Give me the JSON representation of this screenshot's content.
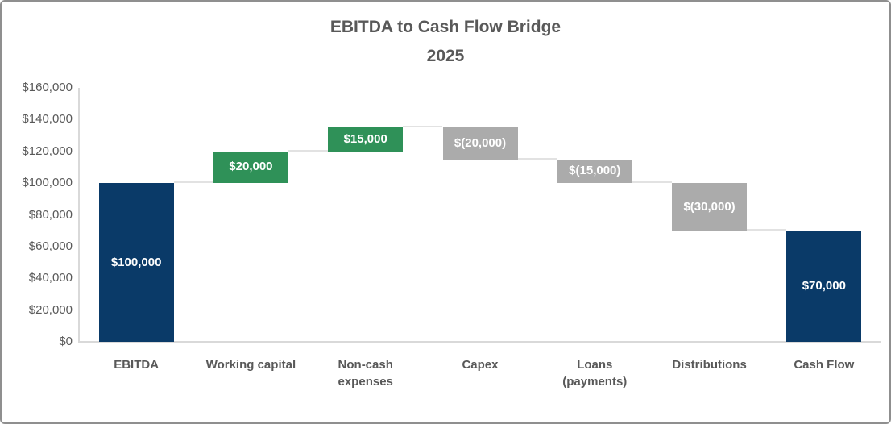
{
  "title": {
    "line1": "EBITDA to Cash Flow Bridge",
    "line2": "2025"
  },
  "chart_data": {
    "type": "bar",
    "subtype": "waterfall",
    "title": "EBITDA to Cash Flow Bridge",
    "subtitle": "2025",
    "xlabel": "",
    "ylabel": "",
    "ylim": [
      0,
      160000
    ],
    "grid": false,
    "legend": "none",
    "categories": [
      {
        "lines": [
          "EBITDA"
        ]
      },
      {
        "lines": [
          "Working capital"
        ]
      },
      {
        "lines": [
          "Non-cash",
          "expenses"
        ]
      },
      {
        "lines": [
          "Capex"
        ]
      },
      {
        "lines": [
          "Loans",
          "(payments)"
        ]
      },
      {
        "lines": [
          "Distributions"
        ]
      },
      {
        "lines": [
          "Cash Flow"
        ]
      }
    ],
    "points": [
      {
        "name": "EBITDA",
        "value": 100000,
        "type": "total",
        "label": "$100,000"
      },
      {
        "name": "Working capital",
        "value": 20000,
        "type": "increase",
        "label": "$20,000"
      },
      {
        "name": "Non-cash expenses",
        "value": 15000,
        "type": "increase",
        "label": "$15,000"
      },
      {
        "name": "Capex",
        "value": -20000,
        "type": "decrease",
        "label": "$(20,000)"
      },
      {
        "name": "Loans (payments)",
        "value": -15000,
        "type": "decrease",
        "label": "$(15,000)"
      },
      {
        "name": "Distributions",
        "value": -30000,
        "type": "decrease",
        "label": "$(30,000)"
      },
      {
        "name": "Cash Flow",
        "value": 70000,
        "type": "total",
        "label": "$70,000"
      }
    ],
    "yticks": [
      {
        "value": 0,
        "label": "$0"
      },
      {
        "value": 20000,
        "label": "$20,000"
      },
      {
        "value": 40000,
        "label": "$40,000"
      },
      {
        "value": 60000,
        "label": "$60,000"
      },
      {
        "value": 80000,
        "label": "$80,000"
      },
      {
        "value": 100000,
        "label": "$100,000"
      },
      {
        "value": 120000,
        "label": "$120,000"
      },
      {
        "value": 140000,
        "label": "$140,000"
      },
      {
        "value": 160000,
        "label": "$160,000"
      }
    ],
    "colors": {
      "total": "#0a3a68",
      "increase": "#2f9158",
      "decrease": "#ababab",
      "axis": "#d9d9d9",
      "connector": "#e2e2e2",
      "text": "#595959",
      "bar_label_text": "#ffffff"
    }
  }
}
